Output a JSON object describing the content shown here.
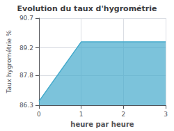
{
  "chart_data": {
    "type": "area",
    "title": "Evolution du taux d'hygrométrie",
    "xlabel": "heure par heure",
    "ylabel": "Taux hygrométrie %",
    "x": [
      0,
      1,
      3
    ],
    "values": [
      86.5,
      89.5,
      89.5
    ],
    "color": "#44aacc",
    "xlim": [
      0,
      3
    ],
    "xticks": [
      0,
      1,
      2,
      3
    ],
    "ylim": [
      86.3,
      90.7
    ],
    "yticks": [
      86.3,
      87.8,
      89.2,
      90.7
    ],
    "grid": true
  }
}
